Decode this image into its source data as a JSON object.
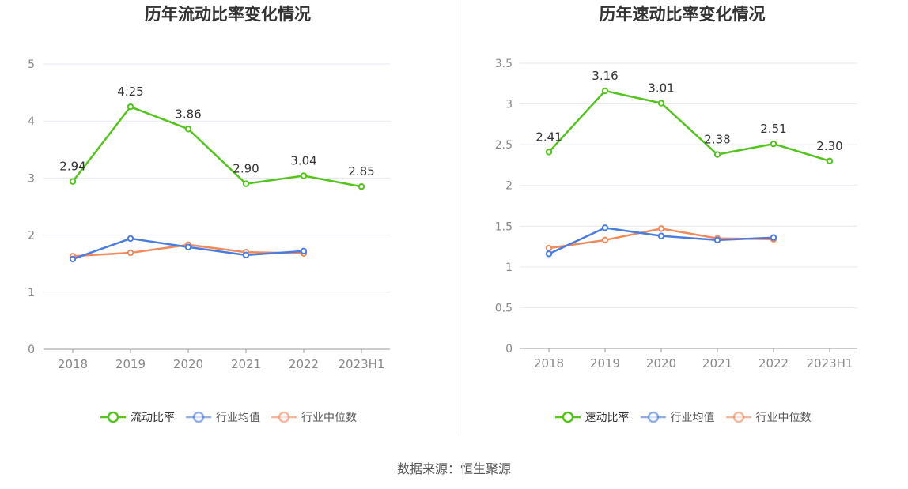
{
  "chart_data": [
    {
      "type": "line",
      "title": "历年流动比率变化情况",
      "categories": [
        "2018",
        "2019",
        "2020",
        "2021",
        "2022",
        "2023H1"
      ],
      "ylim": [
        0,
        5
      ],
      "yticks": [
        "0",
        "1",
        "2",
        "3",
        "4",
        "5"
      ],
      "grid": true,
      "legend_position": "bottom",
      "series": [
        {
          "name": "流动比率",
          "color": "#52c41a",
          "values": [
            2.94,
            4.25,
            3.86,
            2.9,
            3.04,
            2.85
          ],
          "labels": [
            "2.94",
            "4.25",
            "3.86",
            "2.90",
            "3.04",
            "2.85"
          ]
        },
        {
          "name": "行业均值",
          "color": "#4a7bdf",
          "values": [
            1.58,
            1.94,
            1.79,
            1.65,
            1.72,
            null
          ]
        },
        {
          "name": "行业中位数",
          "color": "#f08a5d",
          "values": [
            1.63,
            1.69,
            1.83,
            1.7,
            1.68,
            null
          ]
        }
      ]
    },
    {
      "type": "line",
      "title": "历年速动比率变化情况",
      "categories": [
        "2018",
        "2019",
        "2020",
        "2021",
        "2022",
        "2023H1"
      ],
      "ylim": [
        0,
        3.5
      ],
      "yticks": [
        "0",
        "0.5",
        "1",
        "1.5",
        "2",
        "2.5",
        "3",
        "3.5"
      ],
      "grid": true,
      "legend_position": "bottom",
      "series": [
        {
          "name": "速动比率",
          "color": "#52c41a",
          "values": [
            2.41,
            3.16,
            3.01,
            2.38,
            2.51,
            2.3
          ],
          "labels": [
            "2.41",
            "3.16",
            "3.01",
            "2.38",
            "2.51",
            "2.30"
          ]
        },
        {
          "name": "行业均值",
          "color": "#4a7bdf",
          "values": [
            1.16,
            1.48,
            1.38,
            1.33,
            1.36,
            null
          ]
        },
        {
          "name": "行业中位数",
          "color": "#f08a5d",
          "values": [
            1.23,
            1.33,
            1.47,
            1.35,
            1.34,
            null
          ]
        }
      ]
    }
  ],
  "source_text": "数据来源：恒生聚源"
}
